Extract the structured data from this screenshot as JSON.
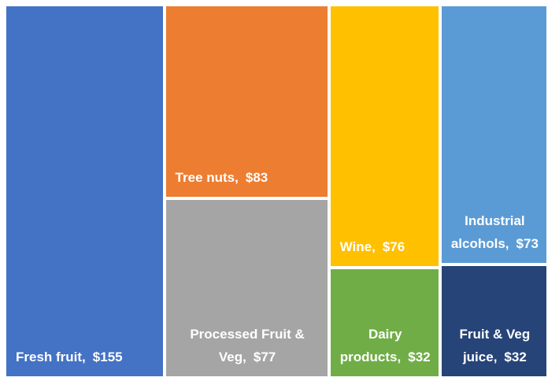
{
  "chart_data": {
    "type": "treemap",
    "categories": [
      "Fresh fruit,",
      "Tree nuts,",
      "Processed Fruit & Veg,",
      "Wine,",
      "Industrial alcohols,",
      "Dairy products,",
      "Fruit & Veg juice,"
    ],
    "values": [
      155,
      83,
      77,
      76,
      73,
      32,
      32
    ],
    "value_labels": [
      "$155",
      "$83",
      "$77",
      "$76",
      "$73",
      "$32",
      "$32"
    ],
    "colors": [
      "#4472c4",
      "#ed7d31",
      "#a5a5a5",
      "#ffc000",
      "#5b9bd5",
      "#70ad47",
      "#264478"
    ]
  }
}
